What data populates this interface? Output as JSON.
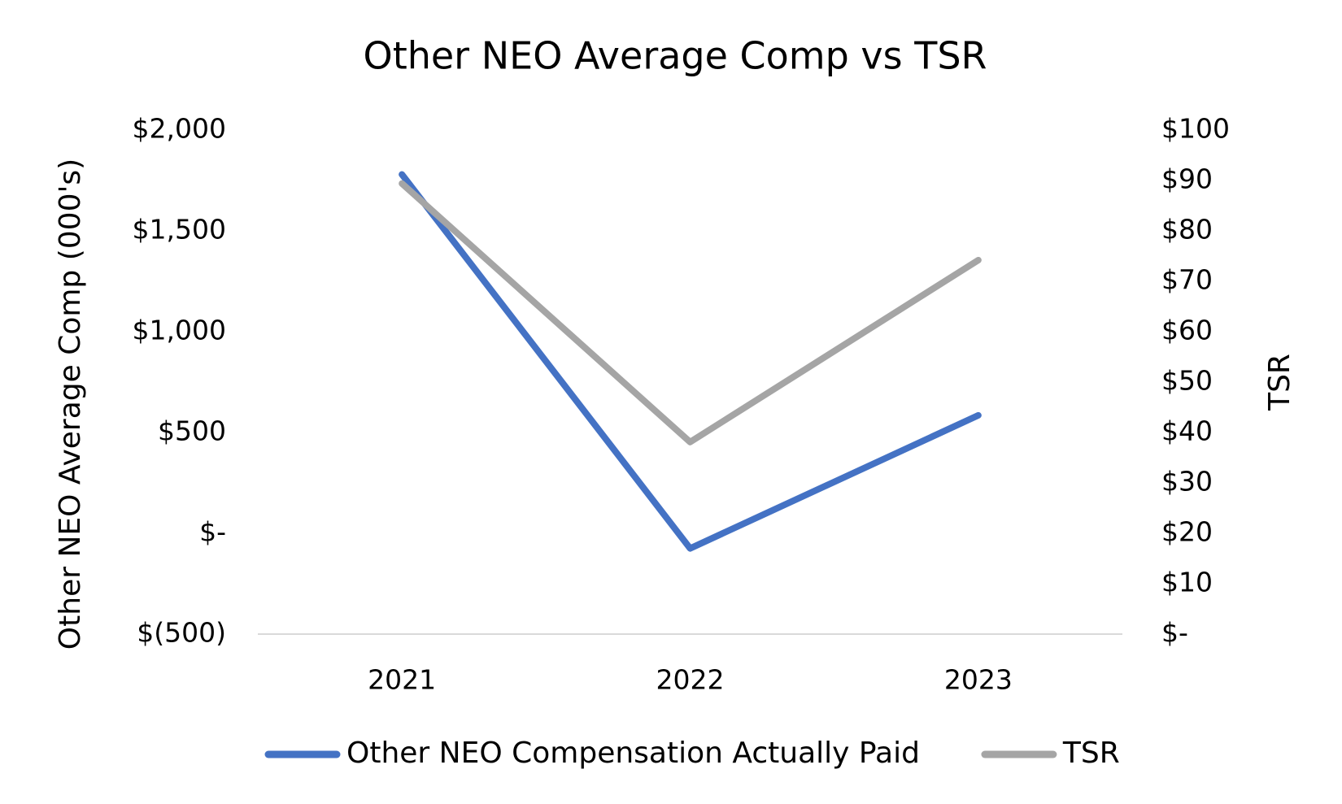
{
  "chart_data": {
    "type": "line",
    "title": "Other NEO Average Comp vs TSR",
    "ylabel": "Other NEO Average Comp (000's)",
    "y2label": "TSR",
    "categories": [
      "2021",
      "2022",
      "2023"
    ],
    "series": [
      {
        "name": "Other NEO Compensation Actually Paid",
        "color": "#4472c4",
        "values": [
          1780,
          -75,
          585
        ]
      },
      {
        "name": "TSR",
        "color": "#a5a5a5",
        "values": [
          89.4,
          38.1,
          74.2
        ],
        "axis": "y2"
      }
    ],
    "ylim": [
      -500,
      2000
    ],
    "yticks": [
      {
        "value": -500,
        "label": "$(500)"
      },
      {
        "value": 0,
        "label": "$-"
      },
      {
        "value": 500,
        "label": "$500"
      },
      {
        "value": 1000,
        "label": "$1,000"
      },
      {
        "value": 1500,
        "label": "$1,500"
      },
      {
        "value": 2000,
        "label": "$2,000"
      }
    ],
    "y2lim": [
      0,
      100
    ],
    "y2ticks": [
      {
        "value": 0,
        "label": "$-"
      },
      {
        "value": 10,
        "label": "$10"
      },
      {
        "value": 20,
        "label": "$20"
      },
      {
        "value": 30,
        "label": "$30"
      },
      {
        "value": 40,
        "label": "$40"
      },
      {
        "value": 50,
        "label": "$50"
      },
      {
        "value": 60,
        "label": "$60"
      },
      {
        "value": 70,
        "label": "$70"
      },
      {
        "value": 80,
        "label": "$80"
      },
      {
        "value": 90,
        "label": "$90"
      },
      {
        "value": 100,
        "label": "$100"
      }
    ],
    "grid": false,
    "legend": "bottom"
  }
}
